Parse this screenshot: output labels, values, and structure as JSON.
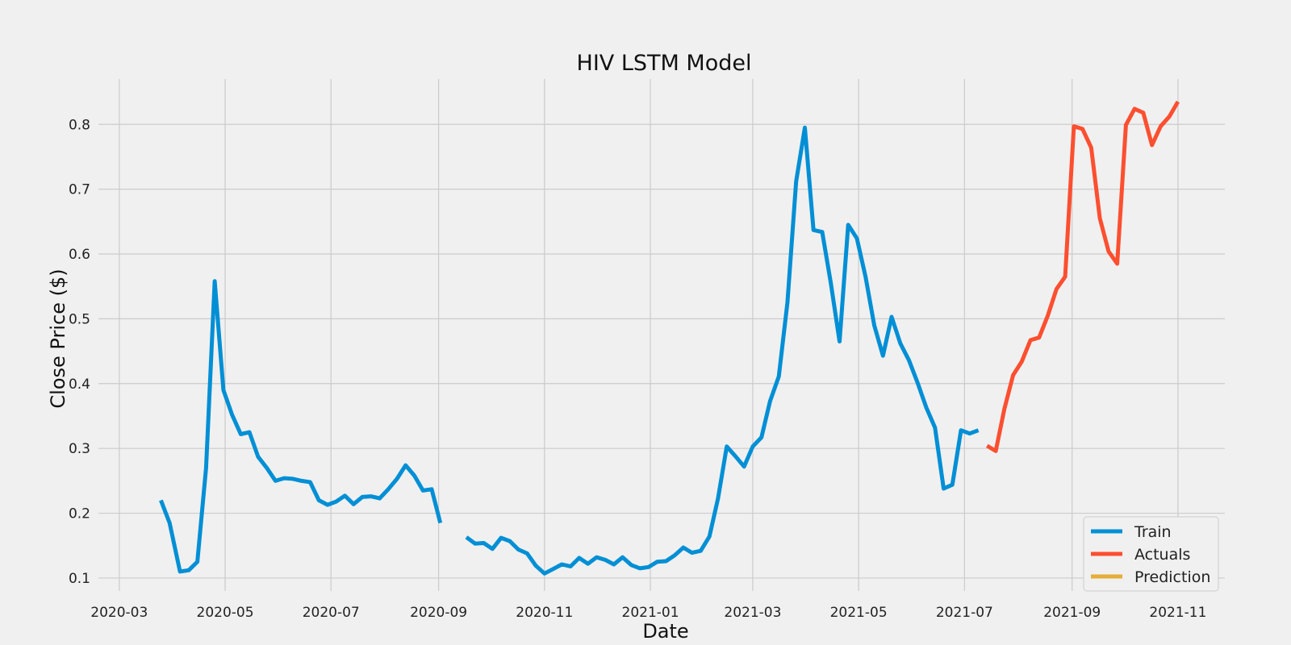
{
  "chart_data": {
    "type": "line",
    "title": "HIV LSTM Model",
    "xlabel": "Date",
    "ylabel": "Close Price ($)",
    "x_range": [
      "2020-02-18",
      "2021-11-28"
    ],
    "x_ticks": [
      "2020-03",
      "2020-05",
      "2020-07",
      "2020-09",
      "2020-11",
      "2021-01",
      "2021-03",
      "2021-05",
      "2021-07",
      "2021-09",
      "2021-11"
    ],
    "ylim": [
      0.08,
      0.87
    ],
    "y_ticks": [
      0.1,
      0.2,
      0.3,
      0.4,
      0.5,
      0.6,
      0.7,
      0.8
    ],
    "grid": true,
    "legend_position": "bottom-right",
    "series": [
      {
        "name": "Train",
        "color": "#008fd5",
        "points": [
          [
            "2020-03-25",
            0.22
          ],
          [
            "2020-03-30",
            0.185
          ],
          [
            "2020-04-05",
            0.11
          ],
          [
            "2020-04-10",
            0.112
          ],
          [
            "2020-04-15",
            0.125
          ],
          [
            "2020-04-20",
            0.27
          ],
          [
            "2020-04-25",
            0.558
          ],
          [
            "2020-04-30",
            0.39
          ],
          [
            "2020-05-05",
            0.352
          ],
          [
            "2020-05-10",
            0.322
          ],
          [
            "2020-05-15",
            0.325
          ],
          [
            "2020-05-20",
            0.287
          ],
          [
            "2020-05-25",
            0.27
          ],
          [
            "2020-05-30",
            0.25
          ],
          [
            "2020-06-04",
            0.254
          ],
          [
            "2020-06-09",
            0.253
          ],
          [
            "2020-06-14",
            0.25
          ],
          [
            "2020-06-19",
            0.248
          ],
          [
            "2020-06-24",
            0.22
          ],
          [
            "2020-06-29",
            0.213
          ],
          [
            "2020-07-04",
            0.218
          ],
          [
            "2020-07-09",
            0.227
          ],
          [
            "2020-07-14",
            0.214
          ],
          [
            "2020-07-19",
            0.225
          ],
          [
            "2020-07-24",
            0.226
          ],
          [
            "2020-07-29",
            0.223
          ],
          [
            "2020-08-03",
            0.237
          ],
          [
            "2020-08-08",
            0.253
          ],
          [
            "2020-08-13",
            0.274
          ],
          [
            "2020-08-18",
            0.258
          ],
          [
            "2020-08-23",
            0.235
          ],
          [
            "2020-08-28",
            0.237
          ],
          [
            "2020-09-02",
            0.185
          ],
          [
            "2020-09-02",
            null
          ],
          [
            "2020-09-17",
            0.163
          ],
          [
            "2020-09-22",
            0.153
          ],
          [
            "2020-09-27",
            0.154
          ],
          [
            "2020-10-02",
            0.145
          ],
          [
            "2020-10-07",
            0.162
          ],
          [
            "2020-10-12",
            0.157
          ],
          [
            "2020-10-17",
            0.144
          ],
          [
            "2020-10-22",
            0.138
          ],
          [
            "2020-10-27",
            0.119
          ],
          [
            "2020-11-01",
            0.107
          ],
          [
            "2020-11-06",
            0.114
          ],
          [
            "2020-11-11",
            0.121
          ],
          [
            "2020-11-16",
            0.118
          ],
          [
            "2020-11-21",
            0.131
          ],
          [
            "2020-11-26",
            0.122
          ],
          [
            "2020-12-01",
            0.132
          ],
          [
            "2020-12-06",
            0.128
          ],
          [
            "2020-12-11",
            0.121
          ],
          [
            "2020-12-16",
            0.132
          ],
          [
            "2020-12-21",
            0.12
          ],
          [
            "2020-12-26",
            0.115
          ],
          [
            "2020-12-31",
            0.117
          ],
          [
            "2021-01-05",
            0.125
          ],
          [
            "2021-01-10",
            0.126
          ],
          [
            "2021-01-15",
            0.135
          ],
          [
            "2021-01-20",
            0.147
          ],
          [
            "2021-01-25",
            0.139
          ],
          [
            "2021-01-30",
            0.142
          ],
          [
            "2021-02-04",
            0.164
          ],
          [
            "2021-02-09",
            0.223
          ],
          [
            "2021-02-14",
            0.303
          ],
          [
            "2021-02-19",
            0.288
          ],
          [
            "2021-02-24",
            0.272
          ],
          [
            "2021-03-01",
            0.303
          ],
          [
            "2021-03-06",
            0.317
          ],
          [
            "2021-03-11",
            0.373
          ],
          [
            "2021-03-16",
            0.411
          ],
          [
            "2021-03-21",
            0.525
          ],
          [
            "2021-03-26",
            0.712
          ],
          [
            "2021-03-31",
            0.795
          ],
          [
            "2021-04-05",
            0.637
          ],
          [
            "2021-04-10",
            0.634
          ],
          [
            "2021-04-15",
            0.555
          ],
          [
            "2021-04-20",
            0.465
          ],
          [
            "2021-04-25",
            0.645
          ],
          [
            "2021-04-30",
            0.624
          ],
          [
            "2021-05-05",
            0.565
          ],
          [
            "2021-05-10",
            0.49
          ],
          [
            "2021-05-15",
            0.443
          ],
          [
            "2021-05-20",
            0.503
          ],
          [
            "2021-05-25",
            0.462
          ],
          [
            "2021-05-30",
            0.436
          ],
          [
            "2021-06-04",
            0.401
          ],
          [
            "2021-06-09",
            0.363
          ],
          [
            "2021-06-14",
            0.332
          ],
          [
            "2021-06-19",
            0.238
          ],
          [
            "2021-06-24",
            0.244
          ],
          [
            "2021-06-29",
            0.328
          ],
          [
            "2021-07-04",
            0.323
          ],
          [
            "2021-07-09",
            0.328
          ]
        ]
      },
      {
        "name": "Actuals",
        "color": "#fc4f30",
        "points": [
          [
            "2021-07-14",
            0.304
          ],
          [
            "2021-07-19",
            0.296
          ],
          [
            "2021-07-24",
            0.361
          ],
          [
            "2021-07-29",
            0.413
          ],
          [
            "2021-08-03",
            0.434
          ],
          [
            "2021-08-08",
            0.467
          ],
          [
            "2021-08-13",
            0.471
          ],
          [
            "2021-08-18",
            0.505
          ],
          [
            "2021-08-23",
            0.546
          ],
          [
            "2021-08-28",
            0.565
          ],
          [
            "2021-09-02",
            0.797
          ],
          [
            "2021-09-07",
            0.793
          ],
          [
            "2021-09-12",
            0.764
          ],
          [
            "2021-09-17",
            0.655
          ],
          [
            "2021-09-22",
            0.604
          ],
          [
            "2021-09-27",
            0.585
          ],
          [
            "2021-10-02",
            0.799
          ],
          [
            "2021-10-07",
            0.824
          ],
          [
            "2021-10-12",
            0.818
          ],
          [
            "2021-10-17",
            0.768
          ],
          [
            "2021-10-22",
            0.797
          ],
          [
            "2021-10-27",
            0.812
          ],
          [
            "2021-11-01",
            0.835
          ]
        ]
      },
      {
        "name": "Prediction",
        "color": "#e5ae38",
        "points": []
      }
    ]
  }
}
